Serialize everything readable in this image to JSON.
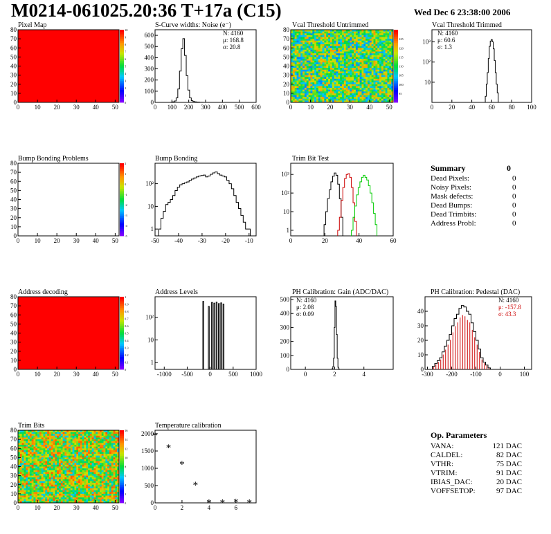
{
  "header": {
    "title": "M0214-061025.20:36 T+17a (C15)",
    "date": "Wed Dec  6 23:38:00 2006"
  },
  "chart_data": [
    {
      "id": "pixel_map",
      "type": "heatmap",
      "title": "Pixel Map",
      "xlim": [
        0,
        52
      ],
      "ylim": [
        0,
        80
      ],
      "xticks": [
        0,
        10,
        20,
        30,
        40,
        50
      ],
      "yticks": [
        0,
        10,
        20,
        30,
        40,
        50,
        60,
        70,
        80
      ],
      "zlim": [
        0,
        10
      ],
      "zticks": [
        0,
        1,
        2,
        3,
        4,
        5,
        6,
        7,
        8,
        9,
        10
      ],
      "fill": "uniform",
      "fill_color": "#ff0000"
    },
    {
      "id": "scurve_noise",
      "type": "histogram",
      "title": "S-Curve widths: Noise (e⁻)",
      "xlim": [
        0,
        600
      ],
      "ylim": [
        0,
        650
      ],
      "log": false,
      "xticks": [
        0,
        100,
        200,
        300,
        400,
        500,
        600
      ],
      "yticks": [
        0,
        100,
        200,
        300,
        400,
        500,
        600
      ],
      "x": [
        100,
        110,
        120,
        130,
        140,
        150,
        160,
        170,
        180,
        190,
        200,
        210,
        220,
        230,
        240,
        250,
        260,
        270,
        280
      ],
      "values": [
        2,
        5,
        12,
        40,
        120,
        280,
        480,
        570,
        420,
        240,
        110,
        40,
        15,
        8,
        5,
        3,
        2,
        1,
        1
      ],
      "bin_width": 10,
      "stats": [
        "N: 4160",
        "μ: 168.8",
        "σ: 20.8"
      ]
    },
    {
      "id": "vcal_untrimmed",
      "type": "heatmap",
      "title": "Vcal Threshold Untrimmed",
      "xlim": [
        0,
        52
      ],
      "ylim": [
        0,
        80
      ],
      "xticks": [
        0,
        10,
        20,
        30,
        40,
        50
      ],
      "yticks": [
        0,
        10,
        20,
        30,
        40,
        50,
        60,
        70,
        80
      ],
      "zlim": [
        90,
        130
      ],
      "zticks": [
        95,
        100,
        105,
        110,
        115,
        120,
        125
      ],
      "fill": "noise",
      "mean_value": 112
    },
    {
      "id": "vcal_trimmed",
      "type": "histogram",
      "title": "Vcal Threshold Trimmed",
      "xlim": [
        0,
        100
      ],
      "ylim": [
        1,
        4000
      ],
      "log": true,
      "xticks": [
        0,
        20,
        40,
        60,
        80,
        100
      ],
      "yticks": [
        10,
        100,
        1000
      ],
      "ytick_labels": [
        "10",
        "10²",
        "10³"
      ],
      "x": [
        54,
        55,
        56,
        57,
        58,
        59,
        60,
        61,
        62,
        63,
        64,
        65,
        66,
        67
      ],
      "values": [
        2,
        8,
        30,
        150,
        600,
        1100,
        1300,
        1000,
        450,
        120,
        30,
        8,
        3,
        1
      ],
      "bin_width": 1,
      "stats": [
        "N: 4160",
        "μ: 60.6",
        "σ:  1.3"
      ]
    },
    {
      "id": "bump_problems",
      "type": "heatmap",
      "title": "Bump Bonding Problems",
      "xlim": [
        0,
        52
      ],
      "ylim": [
        0,
        80
      ],
      "xticks": [
        0,
        10,
        20,
        30,
        40,
        50
      ],
      "yticks": [
        0,
        10,
        20,
        30,
        40,
        50,
        60,
        70,
        80
      ],
      "zlim": [
        -5,
        2
      ],
      "zticks": [
        -5,
        -4,
        -3,
        -2,
        -1,
        0,
        1,
        2
      ],
      "fill": "empty"
    },
    {
      "id": "bump_bonding",
      "type": "histogram",
      "title": "Bump Bonding",
      "xlim": [
        -50,
        -7
      ],
      "ylim": [
        0.5,
        800
      ],
      "log": true,
      "xticks": [
        -50,
        -40,
        -30,
        -20,
        -10
      ],
      "yticks": [
        1,
        10,
        100
      ],
      "ytick_labels": [
        "1",
        "10",
        "10²"
      ],
      "x": [
        -48,
        -47,
        -46,
        -45,
        -44,
        -43,
        -42,
        -41,
        -40,
        -39,
        -38,
        -37,
        -36,
        -35,
        -34,
        -33,
        -32,
        -31,
        -30,
        -29,
        -28,
        -27,
        -26,
        -25,
        -24,
        -23,
        -22,
        -21,
        -20,
        -19,
        -18,
        -17,
        -16,
        -15,
        -14,
        -13,
        -12,
        -11,
        -10
      ],
      "values": [
        1,
        3,
        6,
        12,
        15,
        20,
        30,
        50,
        70,
        90,
        100,
        110,
        120,
        140,
        160,
        180,
        200,
        220,
        230,
        240,
        200,
        220,
        260,
        300,
        330,
        280,
        240,
        220,
        200,
        140,
        100,
        60,
        30,
        15,
        8,
        4,
        2,
        1,
        1
      ],
      "bin_width": 1
    },
    {
      "id": "trim_bit_test",
      "type": "histogram",
      "title": "Trim Bit Test",
      "xlim": [
        0,
        60
      ],
      "ylim": [
        0.5,
        4000
      ],
      "log": true,
      "xticks": [
        0,
        20,
        40,
        60
      ],
      "yticks": [
        1,
        10,
        100,
        1000
      ],
      "ytick_labels": [
        "1",
        "10",
        "10²",
        "10³"
      ],
      "series": [
        {
          "name": "bit1",
          "color": "#000000",
          "bin_width": 1,
          "x": [
            20,
            21,
            22,
            23,
            24,
            25,
            26,
            27,
            28,
            29,
            30
          ],
          "values": [
            2,
            10,
            50,
            150,
            400,
            800,
            1200,
            900,
            300,
            50,
            5
          ]
        },
        {
          "name": "bit2",
          "color": "#cc0000",
          "bin_width": 1,
          "x": [
            28,
            29,
            30,
            31,
            32,
            33,
            34,
            35,
            36,
            37,
            38
          ],
          "values": [
            1,
            5,
            40,
            200,
            600,
            1000,
            1100,
            700,
            200,
            30,
            3
          ]
        },
        {
          "name": "bit3",
          "color": "#00cc00",
          "bin_width": 1,
          "x": [
            36,
            37,
            38,
            39,
            40,
            41,
            42,
            43,
            44,
            45,
            46,
            47,
            48,
            49,
            50
          ],
          "values": [
            1,
            5,
            20,
            80,
            200,
            400,
            700,
            900,
            700,
            500,
            250,
            100,
            30,
            8,
            2
          ]
        }
      ]
    },
    {
      "id": "address_decoding",
      "type": "heatmap",
      "title": "Address decoding",
      "xlim": [
        0,
        52
      ],
      "ylim": [
        0,
        80
      ],
      "xticks": [
        0,
        10,
        20,
        30,
        40,
        50
      ],
      "yticks": [
        0,
        10,
        20,
        30,
        40,
        50,
        60,
        70,
        80
      ],
      "zlim": [
        0,
        1
      ],
      "zticks": [
        0,
        0.1,
        0.2,
        0.3,
        0.4,
        0.5,
        0.6,
        0.7,
        0.8,
        0.9,
        1
      ],
      "fill": "uniform",
      "fill_color": "#ff0000"
    },
    {
      "id": "address_levels",
      "type": "histogram",
      "title": "Address Levels",
      "xlim": [
        -1200,
        1000
      ],
      "ylim": [
        0.5,
        800
      ],
      "log": true,
      "xticks": [
        -1000,
        -500,
        0,
        500,
        1000
      ],
      "yticks": [
        1,
        10,
        100
      ],
      "ytick_labels": [
        "1",
        "10",
        "10²"
      ],
      "series": [
        {
          "name": "levels",
          "color": "#000000",
          "bin_width": 20,
          "style": "spikes",
          "x": [
            -150,
            -30,
            40,
            90,
            140,
            190,
            240,
            290
          ],
          "values": [
            500,
            300,
            450,
            420,
            460,
            400,
            430,
            380
          ]
        }
      ]
    },
    {
      "id": "ph_gain",
      "type": "histogram",
      "title": "PH Calibration: Gain (ADC/DAC)",
      "xlim": [
        -1,
        6
      ],
      "ylim": [
        0,
        520
      ],
      "log": false,
      "xticks": [
        0,
        2,
        4
      ],
      "yticks": [
        0,
        100,
        200,
        300,
        400,
        500
      ],
      "x": [
        1.85,
        1.9,
        1.95,
        2.0,
        2.05,
        2.1,
        2.15,
        2.2,
        2.25,
        2.3
      ],
      "values": [
        5,
        20,
        80,
        300,
        490,
        450,
        250,
        80,
        15,
        3
      ],
      "bin_width": 0.05,
      "stats": [
        "N: 4160",
        "μ: 2.08",
        "σ: 0.09"
      ]
    },
    {
      "id": "ph_pedestal",
      "type": "histogram",
      "title": "PH Calibration: Pedestal (DAC)",
      "xlim": [
        -310,
        130
      ],
      "ylim": [
        0,
        50
      ],
      "log": false,
      "xticks": [
        -300,
        -200,
        -100,
        0,
        100
      ],
      "yticks": [
        0,
        10,
        20,
        30,
        40
      ],
      "x": [
        -275,
        -265,
        -255,
        -245,
        -235,
        -225,
        -215,
        -205,
        -195,
        -185,
        -175,
        -165,
        -155,
        -145,
        -135,
        -125,
        -115,
        -105,
        -95,
        -85,
        -75,
        -65,
        -55,
        -45
      ],
      "values": [
        2,
        4,
        6,
        8,
        12,
        16,
        20,
        24,
        30,
        35,
        38,
        42,
        44,
        43,
        40,
        38,
        32,
        26,
        20,
        14,
        8,
        5,
        3,
        1
      ],
      "bin_width": 10,
      "stats": [
        "N: 4160",
        "μ: -157.8",
        "σ: 43.3"
      ],
      "fit_color": "#cc0000"
    },
    {
      "id": "trim_bits",
      "type": "heatmap",
      "title": "Trim Bits",
      "xlim": [
        0,
        52
      ],
      "ylim": [
        0,
        80
      ],
      "xticks": [
        0,
        10,
        20,
        30,
        40,
        50
      ],
      "yticks": [
        0,
        10,
        20,
        30,
        40,
        50,
        60,
        70,
        80
      ],
      "zlim": [
        0,
        16
      ],
      "zticks": [
        0,
        2,
        4,
        6,
        8,
        10,
        12,
        14,
        16
      ],
      "fill": "noise",
      "mean_value": 10
    },
    {
      "id": "temperature_calibration",
      "type": "scatter",
      "title": "Temperature calibration",
      "xlim": [
        0,
        7.5
      ],
      "ylim": [
        0,
        2100
      ],
      "xticks": [
        0,
        2,
        4,
        6
      ],
      "yticks": [
        0,
        500,
        1000,
        1500,
        2000
      ],
      "x": [
        0,
        1,
        2,
        3,
        4,
        5,
        6,
        7
      ],
      "y": [
        1950,
        1600,
        1120,
        520,
        15,
        15,
        30,
        15
      ],
      "marker": "*"
    }
  ],
  "summary": {
    "title": "Summary",
    "total": "0",
    "rows": [
      {
        "label": "Dead Pixels:",
        "value": "0"
      },
      {
        "label": "Noisy Pixels:",
        "value": "0"
      },
      {
        "label": "Mask defects:",
        "value": "0"
      },
      {
        "label": "Dead Bumps:",
        "value": "0"
      },
      {
        "label": "Dead Trimbits:",
        "value": "0"
      },
      {
        "label": "Address Probl:",
        "value": "0"
      }
    ]
  },
  "op_params": {
    "title": "Op. Parameters",
    "rows": [
      {
        "label": "VANA:",
        "value": "121 DAC"
      },
      {
        "label": "CALDEL:",
        "value": "82 DAC"
      },
      {
        "label": "VTHR:",
        "value": "75 DAC"
      },
      {
        "label": "VTRIM:",
        "value": "91 DAC"
      },
      {
        "label": "IBIAS_DAC:",
        "value": "20 DAC"
      },
      {
        "label": "VOFFSETOP:",
        "value": "97 DAC"
      }
    ]
  }
}
